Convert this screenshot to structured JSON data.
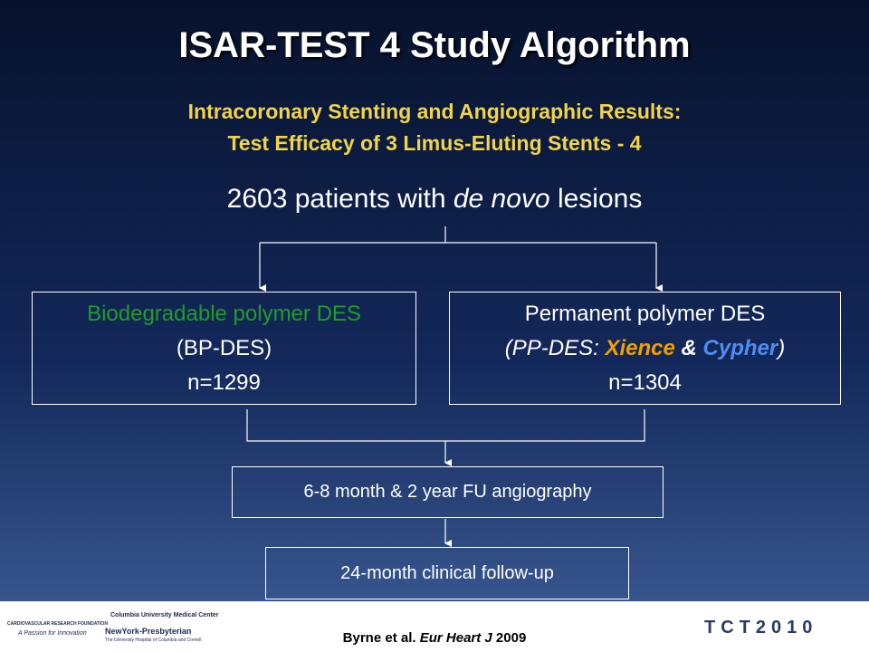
{
  "header": {
    "title": "ISAR-TEST 4 Study Algorithm",
    "subtitle_lines": [
      "Intracoronary Stenting and Angiographic Results:",
      "Test Efficacy of 3 Limus-Eluting Stents - 4"
    ]
  },
  "nodes": [
    {
      "parts": [
        "2603 patients with ",
        "de novo",
        " lesions"
      ]
    },
    {
      "lines": [
        "Biodegradable polymer DES",
        "(BP-DES)",
        "n=1299"
      ]
    },
    {
      "lines": [
        [
          "Permanent polymer DES"
        ],
        [
          "(PP-DES: ",
          "Xience",
          " & ",
          "Cypher",
          ")"
        ],
        [
          "n=1304"
        ]
      ]
    },
    {
      "label": "6-8 month & 2 year FU angiography"
    },
    {
      "label": "24-month clinical follow-up"
    }
  ],
  "footer": {
    "citation": [
      "Byrne et al. ",
      "Eur Heart J",
      " 2009"
    ],
    "logos": [
      "CARDIOVASCULAR RESEARCH FOUNDATION",
      "A Passion for Innovation",
      "Columbia University Medical Center",
      "NewYork-Presbyterian",
      "The University Hospital of Columbia and Cornell",
      "TCT2010"
    ]
  }
}
